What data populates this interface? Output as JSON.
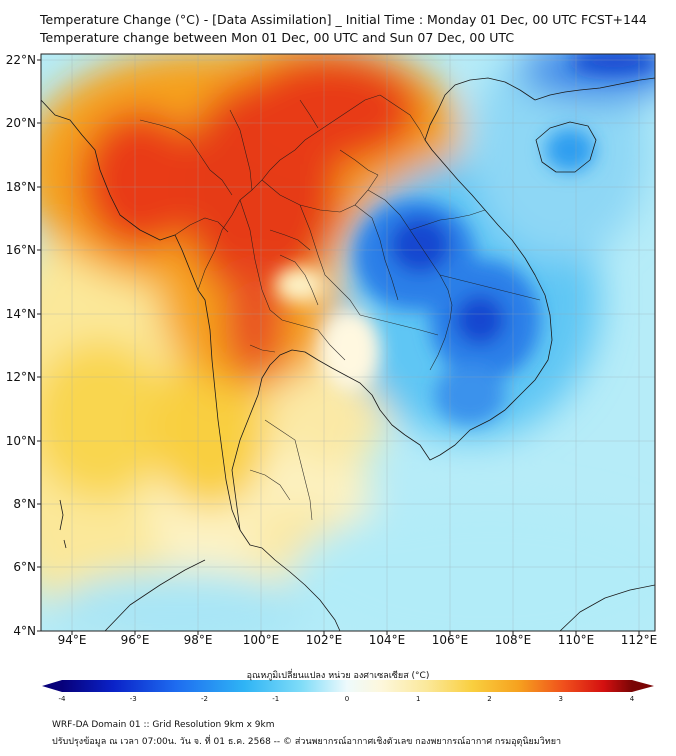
{
  "title_line1": "Temperature Change (°C) - [Data Assimilation] _ Initial Time : Monday 01 Dec, 00 UTC FCST+144",
  "title_line2": "Temperature change between Mon 01 Dec, 00 UTC and Sun 07 Dec, 00 UTC",
  "lat_labels": [
    "22°N",
    "20°N",
    "18°N",
    "16°N",
    "14°N",
    "12°N",
    "10°N",
    "8°N",
    "6°N",
    "4°N"
  ],
  "lon_labels": [
    "94°E",
    "96°E",
    "98°E",
    "100°E",
    "102°E",
    "104°E",
    "106°E",
    "108°E",
    "110°E",
    "112°E"
  ],
  "map_extent": {
    "lon": [
      93,
      112.5
    ],
    "lat": [
      4,
      22.2
    ]
  },
  "colorbar": {
    "title": "อุณหภูมิเปลี่ยนแปลง หน่วย องศาเซลเซียส (°C)",
    "range": [
      -4,
      4
    ],
    "tick_labels": [
      "-4",
      "-3",
      "-2",
      "-1",
      "0",
      "1",
      "2",
      "3",
      "4"
    ],
    "colors": [
      "#07007a",
      "#0a22c8",
      "#1e6cf0",
      "#2fb4f5",
      "#7fdcf8",
      "#e8f8fb",
      "#fffaf0",
      "#fbe89a",
      "#f9cf3f",
      "#f6a21f",
      "#f0501c",
      "#d41010",
      "#7a0505"
    ]
  },
  "footer_line1": "WRF-DA Domain 01 :: Grid Resolution 9km x 9km",
  "footer_line2": "ปรับปรุงข้อมูล ณ เวลา 07:00น. วัน จ. ที่ 01 ธ.ค. 2568 -- © ส่วนพยากรณ์อากาศเชิงตัวเลข กองพยากรณ์อากาศ กรมอุตุนิยมวิทยา",
  "icons": {
    "map": "temperature-change-map"
  }
}
